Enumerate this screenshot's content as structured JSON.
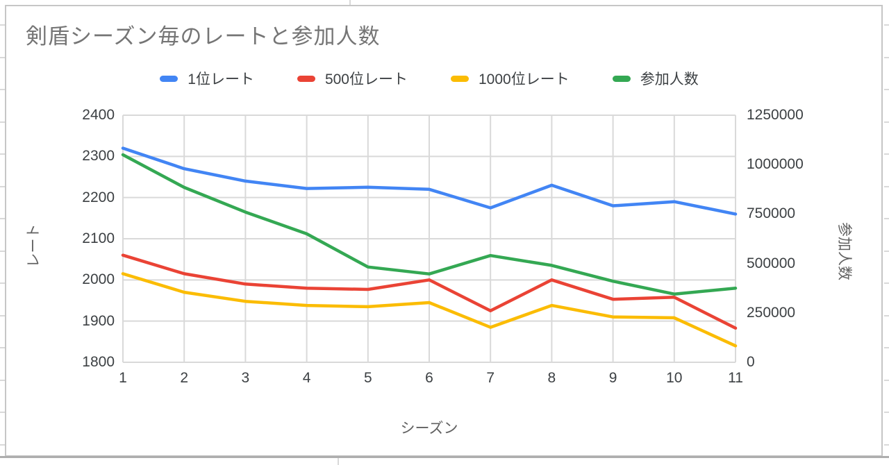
{
  "colors": {
    "title": "#757575",
    "tick_text": "#3c4043",
    "axis_title_text": "#616161",
    "grid": "#d9d9d9",
    "card_border": "#c6c6c6",
    "bottom_rule": "#aeaeae"
  },
  "chart_data": {
    "type": "line",
    "title": "剣盾シーズン毎のレートと参加人数",
    "xlabel": "シーズン",
    "ylabel_left": "レート",
    "ylabel_right": "参加人数",
    "x": [
      1,
      2,
      3,
      4,
      5,
      6,
      7,
      8,
      9,
      10,
      11
    ],
    "ylim_left": [
      1800,
      2400
    ],
    "yticks_left": [
      2400,
      2300,
      2200,
      2100,
      2000,
      1900,
      1800
    ],
    "ylim_right": [
      0,
      1250000
    ],
    "yticks_right": [
      1250000,
      1000000,
      750000,
      500000,
      250000,
      0
    ],
    "grid": true,
    "legend_position": "top",
    "series": [
      {
        "name": "1位レート",
        "axis": "left",
        "color": "#4285F4",
        "values": [
          2320,
          2270,
          2240,
          2222,
          2225,
          2220,
          2175,
          2230,
          2180,
          2190,
          2160
        ]
      },
      {
        "name": "500位レート",
        "axis": "left",
        "color": "#EA4335",
        "values": [
          2060,
          2015,
          1990,
          1980,
          1977,
          2000,
          1925,
          2000,
          1953,
          1958,
          1883
        ]
      },
      {
        "name": "1000位レート",
        "axis": "left",
        "color": "#FBBC04",
        "values": [
          2015,
          1970,
          1948,
          1938,
          1935,
          1945,
          1885,
          1938,
          1910,
          1908,
          1840
        ]
      },
      {
        "name": "参加人数",
        "axis": "right",
        "color": "#34A853",
        "values": [
          1050000,
          885000,
          760000,
          650000,
          482000,
          447000,
          540000,
          490000,
          410000,
          345000,
          375000
        ]
      }
    ]
  }
}
